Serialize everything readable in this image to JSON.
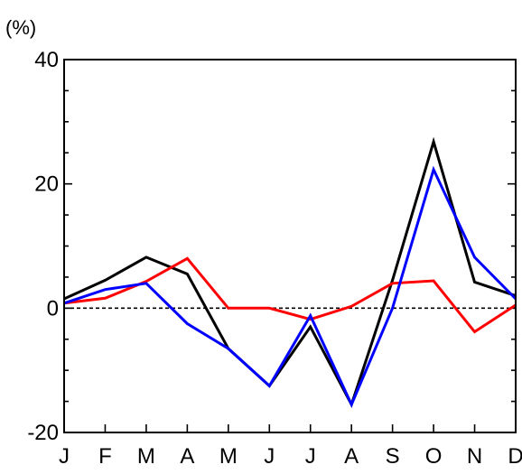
{
  "chart_data": {
    "type": "line",
    "unit_label": "(%)",
    "categories": [
      "J",
      "F",
      "M",
      "A",
      "M",
      "J",
      "J",
      "A",
      "S",
      "O",
      "N",
      "D"
    ],
    "y_ticks": [
      "40",
      "20",
      "0",
      "-20"
    ],
    "ylim": [
      -20,
      40
    ],
    "grid": false,
    "zero_line": "dashed",
    "series": [
      {
        "color": "#000000",
        "values": [
          1.5,
          4.5,
          8.2,
          5.5,
          -6.5,
          -12.5,
          -3.0,
          -15.5,
          4.5,
          26.8,
          4.2,
          2.0
        ]
      },
      {
        "color": "#ff0000",
        "values": [
          0.8,
          1.6,
          4.3,
          8.0,
          0.0,
          0.0,
          -1.8,
          0.3,
          4.0,
          4.4,
          -3.8,
          0.5
        ]
      },
      {
        "color": "#0000ff",
        "values": [
          0.8,
          3.0,
          4.0,
          -2.5,
          -6.5,
          -12.5,
          -1.2,
          -15.5,
          0.0,
          22.3,
          8.2,
          1.5
        ]
      }
    ]
  }
}
